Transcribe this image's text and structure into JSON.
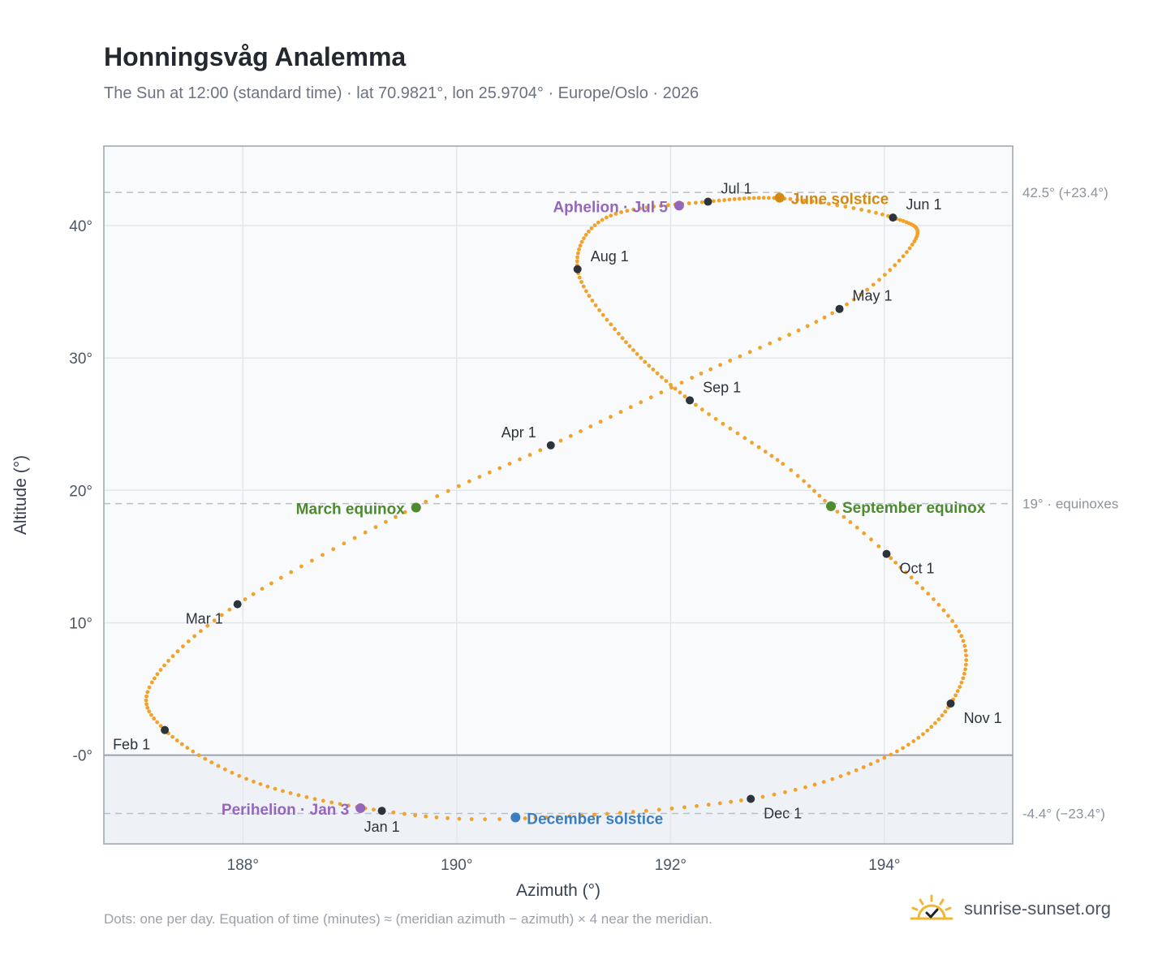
{
  "header": {
    "title": "Honningsvåg Analemma",
    "subtitle": "The Sun at 12:00 (standard time) · lat 70.9821°, lon 25.9704° · Europe/Oslo · 2026"
  },
  "footer": {
    "note": "Dots: one per day. Equation of time (minutes) ≈ (meridian azimuth − azimuth) × 4 near the meridian.",
    "brand": "sunrise-sunset.org",
    "brand_icon": "sun-logo-icon"
  },
  "colors": {
    "curve": "#f2a22b",
    "month_marker": "#2d333b",
    "equinox": "#4e8a2e",
    "june_solstice": "#d48a12",
    "december_solstice": "#3b7dbf",
    "apsis": "#9467bd",
    "plot_background": "#f8fafc",
    "below_horizon": "#eef2f6",
    "reference_line": "#b8c0c9"
  },
  "chart_data": {
    "type": "scatter",
    "title": "Honningsvåg Analemma",
    "xlabel": "Azimuth (°)",
    "ylabel": "Altitude (°)",
    "xlim": [
      186.7,
      195.2
    ],
    "ylim": [
      -6.7,
      46
    ],
    "xticks": [
      188,
      190,
      192,
      194
    ],
    "xtick_labels": [
      "188°",
      "190°",
      "192°",
      "194°"
    ],
    "yticks": [
      0,
      10,
      20,
      30,
      40
    ],
    "ytick_labels": [
      "-0°",
      "10°",
      "20°",
      "30°",
      "40°"
    ],
    "grid": true,
    "horizon_altitude": 0,
    "reference_lines": [
      {
        "altitude": 42.5,
        "label": "42.5° (+23.4°)"
      },
      {
        "altitude": 19,
        "label": "19° · equinoxes"
      },
      {
        "altitude": -4.4,
        "label": "-4.4° (−23.4°)"
      }
    ],
    "path_points": [
      {
        "day": 1,
        "azimuth": 189.3,
        "altitude": -4.2
      },
      {
        "day": 17,
        "azimuth": 188.1,
        "altitude": -2.0
      },
      {
        "day": 32,
        "azimuth": 187.27,
        "altitude": 1.9
      },
      {
        "day": 44,
        "azimuth": 187.15,
        "altitude": 5.5
      },
      {
        "day": 60,
        "azimuth": 187.95,
        "altitude": 11.4
      },
      {
        "day": 78,
        "azimuth": 189.6,
        "altitude": 18.7
      },
      {
        "day": 91,
        "azimuth": 190.88,
        "altitude": 23.4
      },
      {
        "day": 105,
        "azimuth": 192.2,
        "altitude": 28.5
      },
      {
        "day": 121,
        "azimuth": 193.58,
        "altitude": 33.7
      },
      {
        "day": 136,
        "azimuth": 194.28,
        "altitude": 38.8
      },
      {
        "day": 152,
        "azimuth": 194.08,
        "altitude": 40.6
      },
      {
        "day": 166,
        "azimuth": 193.12,
        "altitude": 42.0
      },
      {
        "day": 182,
        "azimuth": 192.35,
        "altitude": 41.8
      },
      {
        "day": 198,
        "azimuth": 191.4,
        "altitude": 40.6
      },
      {
        "day": 213,
        "azimuth": 191.13,
        "altitude": 36.7
      },
      {
        "day": 228,
        "azimuth": 191.55,
        "altitude": 31.5
      },
      {
        "day": 244,
        "azimuth": 192.18,
        "altitude": 26.8
      },
      {
        "day": 258,
        "azimuth": 193.05,
        "altitude": 22.0
      },
      {
        "day": 266,
        "azimuth": 193.5,
        "altitude": 18.8
      },
      {
        "day": 274,
        "azimuth": 194.02,
        "altitude": 15.2
      },
      {
        "day": 290,
        "azimuth": 194.72,
        "altitude": 9.0
      },
      {
        "day": 305,
        "azimuth": 194.62,
        "altitude": 3.9
      },
      {
        "day": 320,
        "azimuth": 194.0,
        "altitude": -0.2
      },
      {
        "day": 335,
        "azimuth": 192.75,
        "altitude": -3.3
      },
      {
        "day": 355,
        "azimuth": 190.55,
        "altitude": -4.8
      },
      {
        "day": 366,
        "azimuth": 189.3,
        "altitude": -4.2
      }
    ],
    "month_markers": [
      {
        "label": "Jan 1",
        "azimuth": 189.3,
        "altitude": -4.2,
        "label_pos": "below"
      },
      {
        "label": "Feb 1",
        "azimuth": 187.27,
        "altitude": 1.9,
        "label_pos": "below-left"
      },
      {
        "label": "Mar 1",
        "azimuth": 187.95,
        "altitude": 11.4,
        "label_pos": "below-left"
      },
      {
        "label": "Apr 1",
        "azimuth": 190.88,
        "altitude": 23.4,
        "label_pos": "above-left"
      },
      {
        "label": "May 1",
        "azimuth": 193.58,
        "altitude": 33.7,
        "label_pos": "above-right"
      },
      {
        "label": "Jun 1",
        "azimuth": 194.08,
        "altitude": 40.6,
        "label_pos": "above-right"
      },
      {
        "label": "Jul 1",
        "azimuth": 192.35,
        "altitude": 41.8,
        "label_pos": "above-right"
      },
      {
        "label": "Aug 1",
        "azimuth": 191.13,
        "altitude": 36.7,
        "label_pos": "above-right"
      },
      {
        "label": "Sep 1",
        "azimuth": 192.18,
        "altitude": 26.8,
        "label_pos": "above-right"
      },
      {
        "label": "Oct 1",
        "azimuth": 194.02,
        "altitude": 15.2,
        "label_pos": "below-right"
      },
      {
        "label": "Nov 1",
        "azimuth": 194.62,
        "altitude": 3.9,
        "label_pos": "below-right"
      },
      {
        "label": "Dec 1",
        "azimuth": 192.75,
        "altitude": -3.3,
        "label_pos": "below-right"
      }
    ],
    "events": [
      {
        "label": "June solstice",
        "azimuth": 193.02,
        "altitude": 42.1,
        "color_key": "june_solstice",
        "label_pos": "right"
      },
      {
        "label": "March equinox",
        "azimuth": 189.62,
        "altitude": 18.7,
        "color_key": "equinox",
        "label_pos": "left"
      },
      {
        "label": "September equinox",
        "azimuth": 193.5,
        "altitude": 18.8,
        "color_key": "equinox",
        "label_pos": "right"
      },
      {
        "label": "December solstice",
        "azimuth": 190.55,
        "altitude": -4.7,
        "color_key": "december_solstice",
        "label_pos": "right"
      },
      {
        "label": "Aphelion · Jul 5",
        "azimuth": 192.08,
        "altitude": 41.5,
        "color_key": "apsis",
        "label_pos": "left"
      },
      {
        "label": "Perihelion · Jan 3",
        "azimuth": 189.1,
        "altitude": -4.0,
        "color_key": "apsis",
        "label_pos": "left"
      }
    ]
  }
}
